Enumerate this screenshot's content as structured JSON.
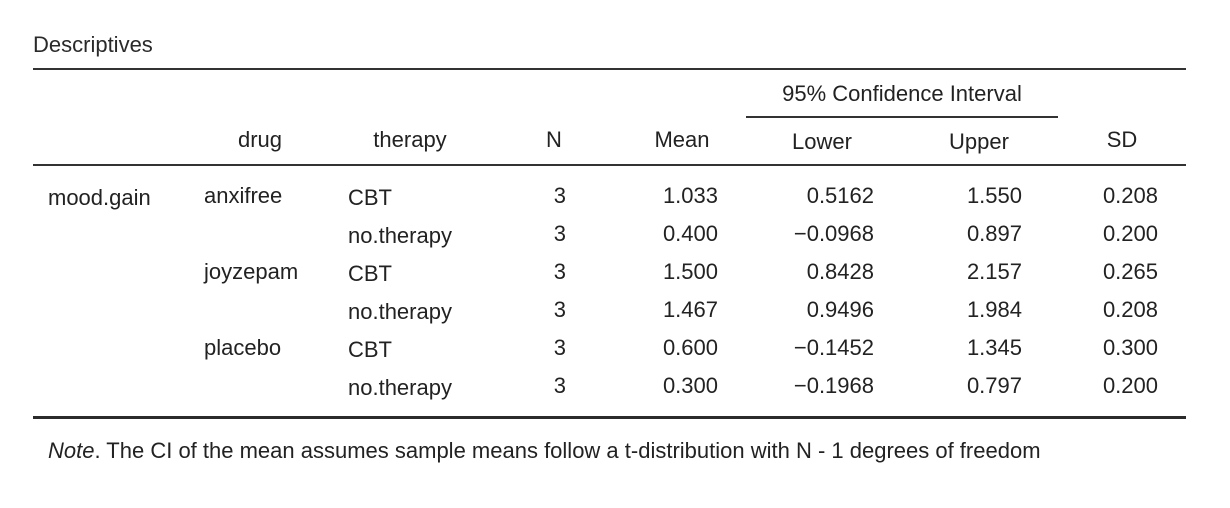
{
  "table": {
    "title": "Descriptives",
    "spanner": "95% Confidence Interval",
    "headers": {
      "drug": "drug",
      "therapy": "therapy",
      "n": "N",
      "mean": "Mean",
      "lower": "Lower",
      "upper": "Upper",
      "sd": "SD"
    },
    "variable": "mood.gain",
    "rows": [
      {
        "drug": "anxifree",
        "therapy": "CBT",
        "n": "3",
        "mean": "1.033",
        "lower": "0.5162",
        "upper": "1.550",
        "sd": "0.208"
      },
      {
        "drug": "",
        "therapy": "no.therapy",
        "n": "3",
        "mean": "0.400",
        "lower": "−0.0968",
        "upper": "0.897",
        "sd": "0.200"
      },
      {
        "drug": "joyzepam",
        "therapy": "CBT",
        "n": "3",
        "mean": "1.500",
        "lower": "0.8428",
        "upper": "2.157",
        "sd": "0.265"
      },
      {
        "drug": "",
        "therapy": "no.therapy",
        "n": "3",
        "mean": "1.467",
        "lower": "0.9496",
        "upper": "1.984",
        "sd": "0.208"
      },
      {
        "drug": "placebo",
        "therapy": "CBT",
        "n": "3",
        "mean": "0.600",
        "lower": "−0.1452",
        "upper": "1.345",
        "sd": "0.300"
      },
      {
        "drug": "",
        "therapy": "no.therapy",
        "n": "3",
        "mean": "0.300",
        "lower": "−0.1968",
        "upper": "0.797",
        "sd": "0.200"
      }
    ],
    "note": {
      "label": "Note",
      "text": ". The CI of the mean assumes sample means follow a t-distribution with N - 1 degrees of freedom"
    }
  }
}
